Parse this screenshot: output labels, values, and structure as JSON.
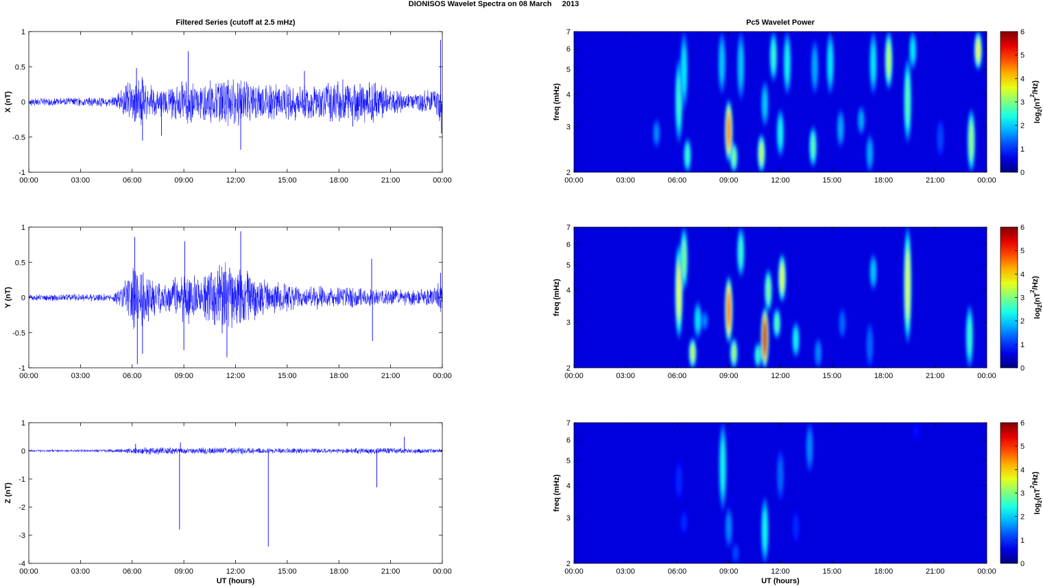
{
  "figure": {
    "suptitle": "DIONISOS Wavelet Spectra on 08 March     2013"
  },
  "chart_data": [
    {
      "type": "line",
      "title": "Filtered Series (cutoff at 2.5 mHz)",
      "xlabel": "",
      "ylabel": "X (nT)",
      "xlim": [
        0,
        24
      ],
      "ylim": [
        -1,
        1
      ],
      "x_ticks": [
        "00:00",
        "03:00",
        "06:00",
        "09:00",
        "12:00",
        "15:00",
        "18:00",
        "21:00",
        "00:00"
      ],
      "y_ticks": [
        "1",
        "0.5",
        "0",
        "-0.5",
        "-1"
      ],
      "color": "#0000ff",
      "envelope": [
        {
          "x": 0,
          "amp": 0.06
        },
        {
          "x": 4.8,
          "amp": 0.07
        },
        {
          "x": 5.2,
          "amp": 0.15
        },
        {
          "x": 6.3,
          "amp": 0.45
        },
        {
          "x": 7.0,
          "amp": 0.25
        },
        {
          "x": 8.0,
          "amp": 0.2
        },
        {
          "x": 9.0,
          "amp": 0.35
        },
        {
          "x": 10.0,
          "amp": 0.3
        },
        {
          "x": 11.5,
          "amp": 0.4
        },
        {
          "x": 13.0,
          "amp": 0.3
        },
        {
          "x": 15.0,
          "amp": 0.3
        },
        {
          "x": 17.0,
          "amp": 0.28
        },
        {
          "x": 18.5,
          "amp": 0.35
        },
        {
          "x": 20.0,
          "amp": 0.3
        },
        {
          "x": 22.0,
          "amp": 0.12
        },
        {
          "x": 23.6,
          "amp": 0.2
        },
        {
          "x": 24,
          "amp": 0.5
        }
      ],
      "spikes": [
        {
          "x": 6.25,
          "y": 0.48
        },
        {
          "x": 6.6,
          "y": -0.55
        },
        {
          "x": 7.7,
          "y": -0.48
        },
        {
          "x": 9.25,
          "y": 0.72
        },
        {
          "x": 12.3,
          "y": -0.68
        },
        {
          "x": 16.0,
          "y": 0.44
        },
        {
          "x": 18.8,
          "y": -0.35
        },
        {
          "x": 23.9,
          "y": 0.88
        },
        {
          "x": 23.95,
          "y": -0.45
        }
      ]
    },
    {
      "type": "line",
      "title": "",
      "xlabel": "",
      "ylabel": "Y (nT)",
      "xlim": [
        0,
        24
      ],
      "ylim": [
        -1,
        1
      ],
      "x_ticks": [
        "00:00",
        "03:00",
        "06:00",
        "09:00",
        "12:00",
        "15:00",
        "18:00",
        "21:00",
        "00:00"
      ],
      "y_ticks": [
        "1",
        "0.5",
        "0",
        "-0.5",
        "-1"
      ],
      "color": "#0000ff",
      "envelope": [
        {
          "x": 0,
          "amp": 0.05
        },
        {
          "x": 4.8,
          "amp": 0.06
        },
        {
          "x": 5.3,
          "amp": 0.18
        },
        {
          "x": 6.3,
          "amp": 0.55
        },
        {
          "x": 7.2,
          "amp": 0.3
        },
        {
          "x": 8.0,
          "amp": 0.22
        },
        {
          "x": 9.0,
          "amp": 0.45
        },
        {
          "x": 10.0,
          "amp": 0.3
        },
        {
          "x": 11.2,
          "amp": 0.55
        },
        {
          "x": 12.5,
          "amp": 0.45
        },
        {
          "x": 14.0,
          "amp": 0.25
        },
        {
          "x": 16.0,
          "amp": 0.18
        },
        {
          "x": 18.0,
          "amp": 0.16
        },
        {
          "x": 20.0,
          "amp": 0.15
        },
        {
          "x": 22.0,
          "amp": 0.12
        },
        {
          "x": 23.6,
          "amp": 0.15
        },
        {
          "x": 24,
          "amp": 0.3
        }
      ],
      "spikes": [
        {
          "x": 6.15,
          "y": 0.86
        },
        {
          "x": 6.3,
          "y": -0.95
        },
        {
          "x": 6.6,
          "y": -0.8
        },
        {
          "x": 9.05,
          "y": 0.8
        },
        {
          "x": 9.0,
          "y": -0.75
        },
        {
          "x": 11.5,
          "y": -0.85
        },
        {
          "x": 12.3,
          "y": 0.94
        },
        {
          "x": 19.9,
          "y": 0.55
        },
        {
          "x": 19.95,
          "y": -0.62
        },
        {
          "x": 23.9,
          "y": 0.35
        }
      ]
    },
    {
      "type": "line",
      "title": "",
      "xlabel": "UT (hours)",
      "ylabel": "Z (nT)",
      "xlim": [
        0,
        24
      ],
      "ylim": [
        -4,
        1
      ],
      "x_ticks": [
        "00:00",
        "03:00",
        "06:00",
        "09:00",
        "12:00",
        "15:00",
        "18:00",
        "21:00",
        "00:00"
      ],
      "y_ticks": [
        "1",
        "0",
        "-1",
        "-2",
        "-3",
        "-4"
      ],
      "color": "#0000ff",
      "envelope": [
        {
          "x": 0,
          "amp": 0.05
        },
        {
          "x": 5.0,
          "amp": 0.06
        },
        {
          "x": 6.5,
          "amp": 0.15
        },
        {
          "x": 9.0,
          "amp": 0.12
        },
        {
          "x": 11.5,
          "amp": 0.15
        },
        {
          "x": 14.0,
          "amp": 0.1
        },
        {
          "x": 18.0,
          "amp": 0.1
        },
        {
          "x": 21.0,
          "amp": 0.12
        },
        {
          "x": 24,
          "amp": 0.08
        }
      ],
      "spikes": [
        {
          "x": 8.75,
          "y": -2.8
        },
        {
          "x": 13.9,
          "y": -3.4
        },
        {
          "x": 20.2,
          "y": -1.3
        },
        {
          "x": 21.8,
          "y": 0.5
        },
        {
          "x": 6.2,
          "y": 0.25
        },
        {
          "x": 8.8,
          "y": 0.3
        }
      ]
    },
    {
      "type": "heatmap",
      "title": "Pc5 Wavelet Power",
      "xlabel": "",
      "ylabel": "freq (mHz)",
      "xlim": [
        0,
        24
      ],
      "ylim": [
        2,
        7
      ],
      "y_scale": "log",
      "x_ticks": [
        "00:00",
        "03:00",
        "06:00",
        "09:00",
        "12:00",
        "15:00",
        "18:00",
        "21:00",
        "00:00"
      ],
      "y_ticks": [
        "2",
        "3",
        "4",
        "5",
        "6",
        "7"
      ],
      "colorbar": {
        "label": "log2(nT²/Hz)",
        "min": 0,
        "max": 6,
        "ticks": [
          "6",
          "5",
          "4",
          "3",
          "2",
          "1",
          "0"
        ],
        "colormap": "jet"
      },
      "blobs": [
        {
          "t": 4.8,
          "f1": 2.5,
          "f2": 3.2,
          "v": 1.6
        },
        {
          "t": 6.1,
          "f1": 2.6,
          "f2": 5.5,
          "v": 2.6
        },
        {
          "t": 6.4,
          "f1": 3.5,
          "f2": 7.0,
          "v": 2.2
        },
        {
          "t": 6.6,
          "f1": 2.0,
          "f2": 2.7,
          "v": 2.6
        },
        {
          "t": 8.6,
          "f1": 4.0,
          "f2": 7.0,
          "v": 2.0
        },
        {
          "t": 9.0,
          "f1": 2.2,
          "f2": 3.8,
          "v": 4.7
        },
        {
          "t": 9.3,
          "f1": 2.0,
          "f2": 2.6,
          "v": 3.0
        },
        {
          "t": 9.7,
          "f1": 3.8,
          "f2": 7.0,
          "v": 2.0
        },
        {
          "t": 10.9,
          "f1": 2.0,
          "f2": 2.8,
          "v": 3.4
        },
        {
          "t": 11.1,
          "f1": 3.0,
          "f2": 4.5,
          "v": 2.0
        },
        {
          "t": 11.6,
          "f1": 4.5,
          "f2": 7.0,
          "v": 2.6
        },
        {
          "t": 12.0,
          "f1": 2.3,
          "f2": 3.5,
          "v": 2.4
        },
        {
          "t": 12.4,
          "f1": 4.0,
          "f2": 7.0,
          "v": 2.4
        },
        {
          "t": 13.9,
          "f1": 2.1,
          "f2": 3.0,
          "v": 2.8
        },
        {
          "t": 14.0,
          "f1": 4.0,
          "f2": 6.5,
          "v": 1.8
        },
        {
          "t": 14.9,
          "f1": 4.0,
          "f2": 7.0,
          "v": 2.2
        },
        {
          "t": 15.5,
          "f1": 2.5,
          "f2": 3.5,
          "v": 1.8
        },
        {
          "t": 16.7,
          "f1": 2.8,
          "f2": 3.6,
          "v": 1.8
        },
        {
          "t": 17.2,
          "f1": 2.0,
          "f2": 2.8,
          "v": 1.8
        },
        {
          "t": 17.4,
          "f1": 4.0,
          "f2": 7.0,
          "v": 2.2
        },
        {
          "t": 18.3,
          "f1": 4.2,
          "f2": 7.0,
          "v": 3.4
        },
        {
          "t": 19.4,
          "f1": 2.6,
          "f2": 5.5,
          "v": 2.8
        },
        {
          "t": 19.7,
          "f1": 5.0,
          "f2": 7.0,
          "v": 2.2
        },
        {
          "t": 21.3,
          "f1": 2.3,
          "f2": 3.2,
          "v": 1.2
        },
        {
          "t": 23.1,
          "f1": 2.0,
          "f2": 3.5,
          "v": 3.2
        },
        {
          "t": 23.5,
          "f1": 5.0,
          "f2": 7.0,
          "v": 3.8
        }
      ]
    },
    {
      "type": "heatmap",
      "title": "",
      "xlabel": "",
      "ylabel": "freq (mHz)",
      "xlim": [
        0,
        24
      ],
      "ylim": [
        2,
        7
      ],
      "y_scale": "log",
      "x_ticks": [
        "00:00",
        "03:00",
        "06:00",
        "09:00",
        "12:00",
        "15:00",
        "18:00",
        "21:00",
        "00:00"
      ],
      "y_ticks": [
        "2",
        "3",
        "4",
        "5",
        "6",
        "7"
      ],
      "colorbar": {
        "label": "log2(nT²/Hz)",
        "min": 0,
        "max": 6,
        "ticks": [
          "6",
          "5",
          "4",
          "3",
          "2",
          "1",
          "0"
        ],
        "colormap": "jet"
      },
      "blobs": [
        {
          "t": 6.1,
          "f1": 2.6,
          "f2": 6.0,
          "v": 3.7
        },
        {
          "t": 6.4,
          "f1": 4.0,
          "f2": 7.0,
          "v": 3.0
        },
        {
          "t": 6.9,
          "f1": 2.0,
          "f2": 2.6,
          "v": 3.4
        },
        {
          "t": 7.2,
          "f1": 2.6,
          "f2": 3.6,
          "v": 2.2
        },
        {
          "t": 7.6,
          "f1": 2.8,
          "f2": 3.3,
          "v": 1.6
        },
        {
          "t": 9.0,
          "f1": 2.5,
          "f2": 4.5,
          "v": 4.8
        },
        {
          "t": 9.3,
          "f1": 2.0,
          "f2": 2.6,
          "v": 3.2
        },
        {
          "t": 9.7,
          "f1": 4.5,
          "f2": 7.0,
          "v": 2.6
        },
        {
          "t": 10.7,
          "f1": 2.0,
          "f2": 2.5,
          "v": 2.6
        },
        {
          "t": 11.1,
          "f1": 2.0,
          "f2": 3.4,
          "v": 5.6
        },
        {
          "t": 11.3,
          "f1": 3.3,
          "f2": 4.8,
          "v": 3.0
        },
        {
          "t": 11.8,
          "f1": 2.6,
          "f2": 3.4,
          "v": 2.8
        },
        {
          "t": 12.1,
          "f1": 3.6,
          "f2": 5.5,
          "v": 3.6
        },
        {
          "t": 12.9,
          "f1": 2.2,
          "f2": 3.0,
          "v": 2.4
        },
        {
          "t": 14.2,
          "f1": 2.0,
          "f2": 2.6,
          "v": 1.6
        },
        {
          "t": 15.6,
          "f1": 2.6,
          "f2": 3.4,
          "v": 1.4
        },
        {
          "t": 17.2,
          "f1": 2.0,
          "f2": 3.0,
          "v": 1.4
        },
        {
          "t": 17.4,
          "f1": 4.0,
          "f2": 5.5,
          "v": 2.0
        },
        {
          "t": 19.4,
          "f1": 2.5,
          "f2": 7.0,
          "v": 3.6
        },
        {
          "t": 23.0,
          "f1": 2.0,
          "f2": 3.5,
          "v": 2.6
        }
      ]
    },
    {
      "type": "heatmap",
      "title": "",
      "xlabel": "UT (hours)",
      "ylabel": "freq (mHz)",
      "xlim": [
        0,
        24
      ],
      "ylim": [
        2,
        7
      ],
      "y_scale": "log",
      "x_ticks": [
        "00:00",
        "03:00",
        "06:00",
        "09:00",
        "12:00",
        "15:00",
        "18:00",
        "21:00",
        "00:00"
      ],
      "y_ticks": [
        "2",
        "3",
        "4",
        "5",
        "6",
        "7"
      ],
      "colorbar": {
        "label": "log2(nT²/Hz)",
        "min": 0,
        "max": 6,
        "ticks": [
          "6",
          "5",
          "4",
          "3",
          "2",
          "1",
          "0"
        ],
        "colormap": "jet"
      },
      "blobs": [
        {
          "t": 6.1,
          "f1": 3.5,
          "f2": 5.0,
          "v": 1.0
        },
        {
          "t": 6.4,
          "f1": 2.6,
          "f2": 3.2,
          "v": 1.0
        },
        {
          "t": 8.65,
          "f1": 3.2,
          "f2": 7.0,
          "v": 2.4
        },
        {
          "t": 9.0,
          "f1": 2.3,
          "f2": 3.3,
          "v": 1.6
        },
        {
          "t": 9.4,
          "f1": 2.0,
          "f2": 2.4,
          "v": 1.2
        },
        {
          "t": 11.1,
          "f1": 2.0,
          "f2": 3.6,
          "v": 2.4
        },
        {
          "t": 12.0,
          "f1": 3.5,
          "f2": 5.5,
          "v": 1.4
        },
        {
          "t": 12.9,
          "f1": 2.4,
          "f2": 3.2,
          "v": 1.0
        },
        {
          "t": 13.7,
          "f1": 4.5,
          "f2": 7.0,
          "v": 1.6
        },
        {
          "t": 19.9,
          "f1": 6.0,
          "f2": 7.0,
          "v": 0.8
        }
      ]
    }
  ]
}
